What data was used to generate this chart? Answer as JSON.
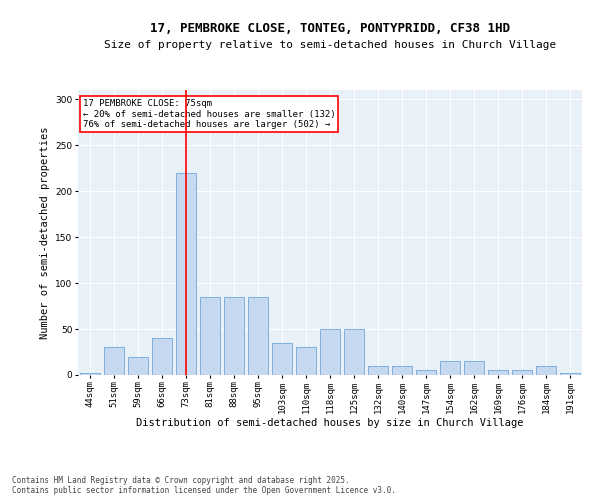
{
  "title": "17, PEMBROKE CLOSE, TONTEG, PONTYPRIDD, CF38 1HD",
  "subtitle": "Size of property relative to semi-detached houses in Church Village",
  "xlabel": "Distribution of semi-detached houses by size in Church Village",
  "ylabel": "Number of semi-detached properties",
  "categories": [
    "44sqm",
    "51sqm",
    "59sqm",
    "66sqm",
    "73sqm",
    "81sqm",
    "88sqm",
    "95sqm",
    "103sqm",
    "110sqm",
    "118sqm",
    "125sqm",
    "132sqm",
    "140sqm",
    "147sqm",
    "154sqm",
    "162sqm",
    "169sqm",
    "176sqm",
    "184sqm",
    "191sqm"
  ],
  "values": [
    2,
    30,
    20,
    40,
    220,
    85,
    85,
    85,
    35,
    30,
    50,
    50,
    10,
    10,
    5,
    15,
    15,
    5,
    5,
    10,
    2
  ],
  "bar_color": "#c6d9f0",
  "bar_edge_color": "#5b9bd5",
  "background_color": "#e8f0f8",
  "property_bin_index": 4,
  "vline_color": "red",
  "annotation_text": "17 PEMBROKE CLOSE: 75sqm\n← 20% of semi-detached houses are smaller (132)\n76% of semi-detached houses are larger (502) →",
  "annotation_box_color": "white",
  "annotation_box_edge": "red",
  "footer_text": "Contains HM Land Registry data © Crown copyright and database right 2025.\nContains public sector information licensed under the Open Government Licence v3.0.",
  "ylim": [
    0,
    310
  ],
  "yticks": [
    0,
    50,
    100,
    150,
    200,
    250,
    300
  ],
  "title_fontsize": 9,
  "subtitle_fontsize": 8,
  "xlabel_fontsize": 7.5,
  "ylabel_fontsize": 7.5,
  "tick_fontsize": 6.5,
  "annotation_fontsize": 6.5,
  "footer_fontsize": 5.5
}
